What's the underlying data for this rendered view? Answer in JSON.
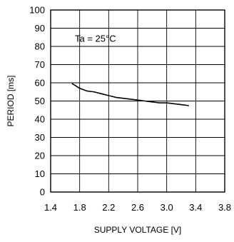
{
  "chart_data": {
    "type": "line",
    "title": "",
    "annotation": "Ta = 25°C",
    "xlabel": "SUPPLY VOLTAGE [V]",
    "ylabel": "PERIOD [ms]",
    "xlim": [
      1.4,
      3.8
    ],
    "ylim": [
      0,
      100
    ],
    "xticks": [
      "1.4",
      "1.8",
      "2.2",
      "2.6",
      "3.0",
      "3.4",
      "3.8"
    ],
    "yticks": [
      "0",
      "10",
      "20",
      "30",
      "40",
      "50",
      "60",
      "70",
      "80",
      "90",
      "100"
    ],
    "grid": true,
    "colors": {
      "line": "#000000",
      "grid": "#000000",
      "axis": "#000000"
    },
    "series": [
      {
        "x": [
          1.7,
          1.8,
          1.9,
          2.0,
          2.1,
          2.2,
          2.3,
          2.4,
          2.5,
          2.6,
          2.7,
          2.8,
          2.9,
          3.0,
          3.1,
          3.2,
          3.3
        ],
        "values": [
          59.5,
          57.0,
          55.5,
          55.0,
          54.0,
          53.0,
          52.0,
          51.5,
          51.0,
          50.5,
          50.0,
          49.5,
          49.0,
          49.0,
          48.5,
          48.0,
          47.5
        ]
      }
    ]
  }
}
